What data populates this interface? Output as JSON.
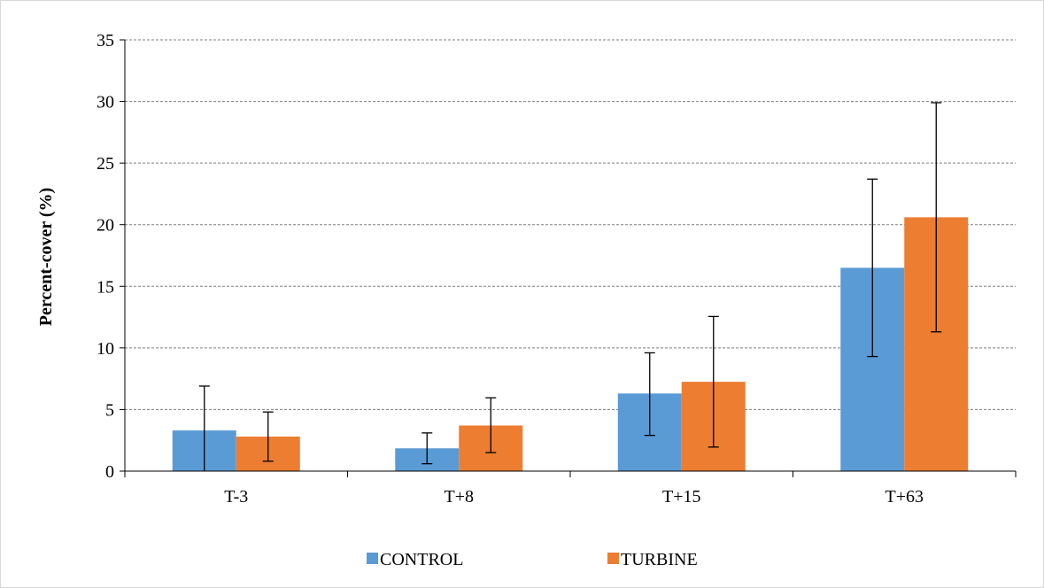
{
  "chart_data": {
    "type": "bar",
    "title": "",
    "xlabel": "",
    "ylabel": "Percent-cover (%)",
    "categories": [
      "T-3",
      "T+8",
      "T+15",
      "T+63"
    ],
    "ylim": [
      0,
      35
    ],
    "yticks": [
      0,
      5,
      10,
      15,
      20,
      25,
      30,
      35
    ],
    "grid": "horizontal-dashed",
    "legend_position": "bottom",
    "series": [
      {
        "name": "CONTROL",
        "color": "#5b9bd5",
        "values": [
          3.3,
          1.85,
          6.3,
          16.5
        ],
        "error_low": [
          0,
          0.6,
          2.9,
          9.3
        ],
        "error_high": [
          6.9,
          3.1,
          9.6,
          23.7
        ]
      },
      {
        "name": "TURBINE",
        "color": "#ed7d31",
        "values": [
          2.8,
          3.7,
          7.25,
          20.6
        ],
        "error_low": [
          0.8,
          1.5,
          1.95,
          11.3
        ],
        "error_high": [
          4.8,
          5.95,
          12.55,
          29.9
        ]
      }
    ]
  }
}
